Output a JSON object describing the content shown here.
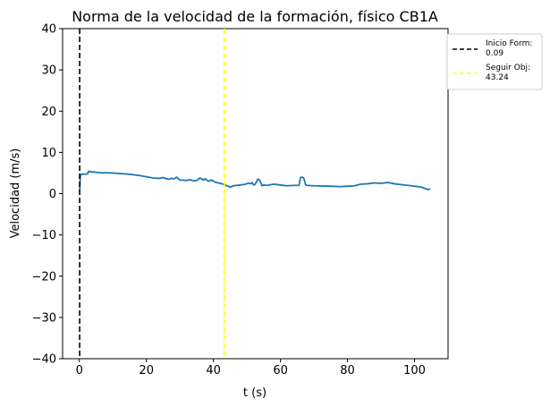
{
  "chart_data": {
    "type": "line",
    "title": "Norma de la velocidad de la formación, físico CB1A",
    "xlabel": "t (s)",
    "ylabel": "Velocidad (m/s)",
    "xlim": [
      -5,
      110
    ],
    "ylim": [
      -40,
      40
    ],
    "xticks": [
      0,
      20,
      40,
      60,
      80,
      100
    ],
    "yticks": [
      -40,
      -30,
      -20,
      -10,
      0,
      10,
      20,
      30,
      40
    ],
    "xtick_labels": [
      "0",
      "20",
      "40",
      "60",
      "80",
      "100"
    ],
    "ytick_labels": [
      "−40",
      "−30",
      "−20",
      "−10",
      "0",
      "10",
      "20",
      "30",
      "40"
    ],
    "grid": false,
    "legend_position": "outside-top-right",
    "series": [
      {
        "color": "#1f77b4",
        "x": [
          0.09,
          0.3,
          0.8,
          2.5,
          2.7,
          3.5,
          6,
          10,
          15,
          18,
          20,
          22,
          24,
          25,
          26,
          26.8,
          27.5,
          28.3,
          29,
          30,
          32,
          33,
          34,
          35,
          36,
          37,
          37.5,
          38.5,
          39.5,
          40.5,
          41.5,
          42.5,
          43.2,
          44,
          45,
          46,
          47,
          48,
          49,
          50,
          50.5,
          51,
          51.5,
          52,
          52.5,
          53.2,
          53.8,
          54.5,
          55,
          56,
          58,
          60,
          62,
          64,
          65.5,
          66,
          66.5,
          67,
          67.5,
          68,
          70,
          75,
          78,
          80,
          82,
          84,
          86,
          88,
          90,
          92,
          94,
          96,
          98,
          100,
          102,
          103,
          104,
          104.5
        ],
        "values": [
          0.7,
          4.6,
          4.7,
          4.8,
          5.4,
          5.3,
          5.1,
          5.0,
          4.7,
          4.4,
          4.1,
          3.8,
          3.7,
          3.9,
          3.6,
          3.5,
          3.7,
          3.6,
          4.0,
          3.3,
          3.2,
          3.4,
          3.1,
          3.2,
          3.8,
          3.3,
          3.6,
          3.0,
          3.3,
          2.8,
          2.6,
          2.4,
          2.2,
          1.9,
          1.6,
          1.9,
          2.0,
          2.1,
          2.2,
          2.4,
          2.6,
          2.4,
          2.7,
          2.1,
          2.3,
          3.5,
          3.3,
          1.9,
          2.1,
          2.0,
          2.3,
          2.1,
          1.9,
          2.0,
          2.0,
          3.9,
          4.0,
          3.7,
          2.1,
          2.0,
          1.9,
          1.8,
          1.7,
          1.8,
          1.9,
          2.3,
          2.4,
          2.6,
          2.5,
          2.7,
          2.4,
          2.2,
          2.0,
          1.8,
          1.6,
          1.3,
          1.0,
          1.1
        ]
      }
    ],
    "vlines": [
      {
        "x": 0.09,
        "color": "#000000",
        "label_line1": "Inicio Form:",
        "label_line2": "0.09"
      },
      {
        "x": 43.24,
        "color": "#ffff00",
        "label_line1": "Seguir Obj:",
        "label_line2": "43.24"
      }
    ]
  }
}
